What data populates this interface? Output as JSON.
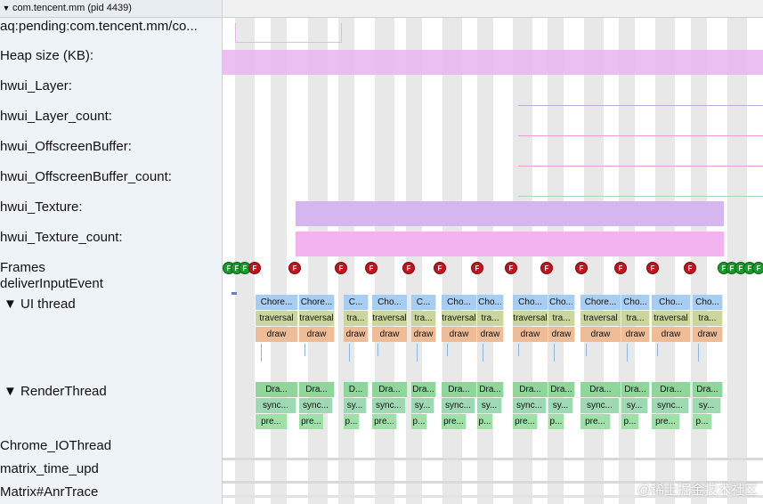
{
  "process_header": {
    "arrow": "▼",
    "title": "com.tencent.mm (pid 4439)"
  },
  "tracks": {
    "aq_pending": "aq:pending:com.tencent.mm/co...",
    "heap_size": "Heap size (KB):",
    "hwui_layer": "hwui_Layer:",
    "hwui_layer_count": "hwui_Layer_count:",
    "hwui_offscreen": "hwui_OffscreenBuffer:",
    "hwui_offscreen_count": "hwui_OffscreenBuffer_count:",
    "hwui_texture": "hwui_Texture:",
    "hwui_texture_count": "hwui_Texture_count:",
    "frames": "Frames",
    "deliver_input": "deliverInputEvent",
    "ui_thread": "▼  UI thread",
    "render_thread": "▼  RenderThread",
    "chrome_io": "Chrome_IOThread",
    "matrix_time": "matrix_time_upd",
    "matrix_anr": "Matrix#AnrTrace"
  },
  "frames": {
    "mark_label": "F",
    "green_left_count": 3,
    "red_count": 13,
    "green_right_count": 5
  },
  "ui_thread": {
    "choreographer": [
      "Chore...",
      "Chore...",
      "C...",
      "Cho...",
      "C...",
      "Cho...",
      "Cho...",
      "Cho...",
      "Cho...",
      "Chore...",
      "Cho...",
      "Cho...",
      "Cho..."
    ],
    "traversal": [
      "traversal",
      "traversal",
      "tra...",
      "traversal",
      "tra...",
      "traversal",
      "tra...",
      "traversal",
      "tra...",
      "traversal",
      "tra...",
      "traversal",
      "tra..."
    ],
    "draw": [
      "draw",
      "draw",
      "draw",
      "draw",
      "draw",
      "draw",
      "draw",
      "draw",
      "draw",
      "draw",
      "draw",
      "draw",
      "draw"
    ]
  },
  "render_thread": {
    "draw_frames": [
      "Dra...",
      "Dra...",
      "D...",
      "Dra...",
      "Dra...",
      "Dra...",
      "Dra...",
      "Dra...",
      "Dra...",
      "Dra...",
      "Dra...",
      "Dra...",
      "Dra..."
    ],
    "sync": [
      "sync...",
      "sync...",
      "sy...",
      "sync...",
      "sy...",
      "sync...",
      "sy...",
      "sync...",
      "sy...",
      "sync...",
      "sy...",
      "sync...",
      "sy..."
    ],
    "prepare": [
      "pre...",
      "pre...",
      "p...",
      "pre...",
      "p...",
      "pre...",
      "p...",
      "pre...",
      "p...",
      "pre...",
      "p...",
      "pre...",
      "p..."
    ]
  },
  "colors": {
    "heap_fill": "#eab8f2",
    "texture_fill": "#d5b6ee",
    "texture_count_fill": "#f2b3f0",
    "frame_red": "#c0141f",
    "frame_green": "#1a9a2b"
  },
  "watermark": "@稀土掘金技术社区"
}
